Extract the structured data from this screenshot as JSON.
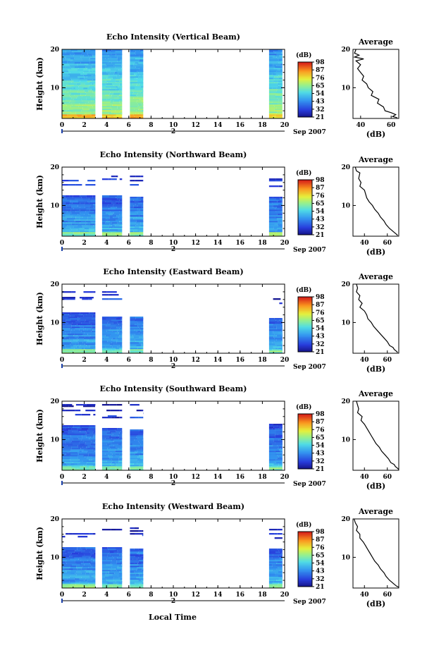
{
  "figure": {
    "xlabel": "Local Time",
    "date_label": "Sep 2007",
    "date_marker": "2"
  },
  "chart_data": [
    {
      "type": "heatmap",
      "title": "Echo Intensity (Vertical Beam)",
      "xlabel": "Local Time",
      "ylabel": "Height (km)",
      "xlim": [
        0,
        20
      ],
      "ylim": [
        2,
        20
      ],
      "xticks": [
        0,
        2,
        4,
        6,
        8,
        10,
        12,
        14,
        16,
        18,
        20
      ],
      "yticks": [
        10,
        20
      ],
      "colorbar": {
        "label": "(dB)",
        "ticks": [
          21,
          32,
          43,
          54,
          65,
          76,
          87,
          98
        ]
      },
      "data_segments": [
        [
          0,
          3
        ],
        [
          3.6,
          5.4
        ],
        [
          6.1,
          7.3
        ],
        [
          18.6,
          19.8
        ]
      ],
      "top_km": 20,
      "top_bottom_by_segment": [
        20,
        20,
        20,
        20
      ],
      "surface_dB": 87,
      "average_profile": {
        "title": "Average",
        "xlabel": "(dB)",
        "xlim": [
          35,
          65
        ],
        "xticks": [
          40,
          60
        ],
        "yticks": [
          10,
          20
        ],
        "points": [
          [
            37,
            20
          ],
          [
            36,
            19
          ],
          [
            39,
            18.5
          ],
          [
            36,
            18
          ],
          [
            42,
            17.5
          ],
          [
            37,
            17
          ],
          [
            40,
            16
          ],
          [
            38,
            15
          ],
          [
            40,
            14
          ],
          [
            42,
            13
          ],
          [
            41,
            12
          ],
          [
            44,
            11
          ],
          [
            45,
            10
          ],
          [
            48,
            9
          ],
          [
            47,
            8
          ],
          [
            52,
            7
          ],
          [
            51,
            6
          ],
          [
            55,
            5
          ],
          [
            56,
            4
          ],
          [
            60,
            3.5
          ],
          [
            63,
            3
          ],
          [
            61,
            2.5
          ],
          [
            64,
            2.2
          ]
        ]
      }
    },
    {
      "type": "heatmap",
      "title": "Echo Intensity (Northward Beam)",
      "xlabel": "Local Time",
      "ylabel": "Height (km)",
      "xlim": [
        0,
        20
      ],
      "ylim": [
        2,
        20
      ],
      "xticks": [
        0,
        2,
        4,
        6,
        8,
        10,
        12,
        14,
        16,
        18,
        20
      ],
      "yticks": [
        10,
        20
      ],
      "colorbar": {
        "label": "(dB)",
        "ticks": [
          21,
          32,
          43,
          54,
          65,
          76,
          87,
          98
        ]
      },
      "data_segments": [
        [
          0,
          3
        ],
        [
          3.6,
          5.4
        ],
        [
          6.1,
          7.3
        ],
        [
          18.6,
          19.8
        ]
      ],
      "top_km": 17.5,
      "top_bottom_by_segment": [
        12.5,
        12.5,
        12,
        12
      ],
      "surface_dB": 68,
      "average_profile": {
        "title": "Average",
        "xlabel": "(dB)",
        "xlim": [
          30,
          70
        ],
        "xticks": [
          40,
          60
        ],
        "yticks": [
          10,
          20
        ],
        "points": [
          [
            32,
            20
          ],
          [
            33,
            19
          ],
          [
            36,
            18.5
          ],
          [
            35,
            17
          ],
          [
            37,
            16
          ],
          [
            36,
            15
          ],
          [
            40,
            14
          ],
          [
            41,
            13
          ],
          [
            42,
            12
          ],
          [
            44,
            11
          ],
          [
            47,
            10
          ],
          [
            49,
            9
          ],
          [
            52,
            8
          ],
          [
            54,
            7
          ],
          [
            57,
            6
          ],
          [
            59,
            5
          ],
          [
            62,
            4
          ],
          [
            64,
            3.5
          ],
          [
            66,
            3
          ],
          [
            68,
            2.5
          ],
          [
            69,
            2.2
          ]
        ]
      }
    },
    {
      "type": "heatmap",
      "title": "Echo Intensity (Eastward Beam)",
      "xlabel": "Local Time",
      "ylabel": "Height (km)",
      "xlim": [
        0,
        20
      ],
      "ylim": [
        2,
        20
      ],
      "xticks": [
        0,
        2,
        4,
        6,
        8,
        10,
        12,
        14,
        16,
        18,
        20
      ],
      "yticks": [
        10,
        20
      ],
      "colorbar": {
        "label": "(dB)",
        "ticks": [
          21,
          32,
          43,
          54,
          65,
          76,
          87,
          98
        ]
      },
      "data_segments": [
        [
          0,
          3
        ],
        [
          3.6,
          5.4
        ],
        [
          6.1,
          7.3
        ],
        [
          18.6,
          19.8
        ]
      ],
      "top_km": 18,
      "top_bottom_by_segment": [
        12.5,
        11.5,
        11.5,
        11
      ],
      "surface_dB": 68,
      "average_profile": {
        "title": "Average",
        "xlabel": "(dB)",
        "xlim": [
          30,
          70
        ],
        "xticks": [
          40,
          60
        ],
        "yticks": [
          10,
          20
        ],
        "points": [
          [
            33,
            20
          ],
          [
            34,
            19
          ],
          [
            33,
            18
          ],
          [
            36,
            17
          ],
          [
            35,
            16
          ],
          [
            38,
            15
          ],
          [
            36,
            14
          ],
          [
            40,
            13
          ],
          [
            42,
            12
          ],
          [
            43,
            11
          ],
          [
            46,
            10
          ],
          [
            48,
            9
          ],
          [
            51,
            8
          ],
          [
            54,
            7
          ],
          [
            57,
            6
          ],
          [
            60,
            5
          ],
          [
            62,
            4
          ],
          [
            65,
            3.5
          ],
          [
            66,
            3
          ],
          [
            68,
            2.5
          ],
          [
            69,
            2.2
          ]
        ]
      }
    },
    {
      "type": "heatmap",
      "title": "Echo Intensity (Southward Beam)",
      "xlabel": "Local Time",
      "ylabel": "Height (km)",
      "xlim": [
        0,
        20
      ],
      "ylim": [
        2,
        20
      ],
      "xticks": [
        0,
        2,
        4,
        6,
        8,
        10,
        12,
        14,
        16,
        18,
        20
      ],
      "yticks": [
        10,
        20
      ],
      "colorbar": {
        "label": "(dB)",
        "ticks": [
          21,
          32,
          43,
          54,
          65,
          76,
          87,
          98
        ]
      },
      "data_segments": [
        [
          0,
          3
        ],
        [
          3.6,
          5.4
        ],
        [
          6.1,
          7.3
        ],
        [
          18.6,
          19.8
        ]
      ],
      "top_km": 19,
      "top_bottom_by_segment": [
        13.5,
        13,
        12.5,
        14
      ],
      "surface_dB": 68,
      "average_profile": {
        "title": "Average",
        "xlabel": "(dB)",
        "xlim": [
          30,
          70
        ],
        "xticks": [
          40,
          60
        ],
        "yticks": [
          10,
          20
        ],
        "points": [
          [
            33,
            20
          ],
          [
            34,
            19
          ],
          [
            35,
            18
          ],
          [
            34,
            17
          ],
          [
            38,
            16
          ],
          [
            37,
            15
          ],
          [
            40,
            14
          ],
          [
            42,
            13
          ],
          [
            44,
            12
          ],
          [
            46,
            11
          ],
          [
            48,
            10
          ],
          [
            50,
            9
          ],
          [
            53,
            8
          ],
          [
            55,
            7
          ],
          [
            58,
            6
          ],
          [
            61,
            5
          ],
          [
            63,
            4
          ],
          [
            66,
            3.5
          ],
          [
            67,
            3
          ],
          [
            69,
            2.5
          ],
          [
            70,
            2.2
          ]
        ]
      }
    },
    {
      "type": "heatmap",
      "title": "Echo Intensity (Westward Beam)",
      "xlabel": "Local Time",
      "ylabel": "Height (km)",
      "xlim": [
        0,
        20
      ],
      "ylim": [
        2,
        20
      ],
      "xticks": [
        0,
        2,
        4,
        6,
        8,
        10,
        12,
        14,
        16,
        18,
        20
      ],
      "yticks": [
        10,
        20
      ],
      "colorbar": {
        "label": "(dB)",
        "ticks": [
          21,
          32,
          43,
          54,
          65,
          76,
          87,
          98
        ]
      },
      "data_segments": [
        [
          0,
          3
        ],
        [
          3.6,
          5.4
        ],
        [
          6.1,
          7.3
        ],
        [
          18.6,
          19.8
        ]
      ],
      "top_km": 17.5,
      "top_bottom_by_segment": [
        12.5,
        12.5,
        12,
        12
      ],
      "surface_dB": 68,
      "average_profile": {
        "title": "Average",
        "xlabel": "(dB)",
        "xlim": [
          30,
          70
        ],
        "xticks": [
          40,
          60
        ],
        "yticks": [
          10,
          20
        ],
        "points": [
          [
            31,
            20
          ],
          [
            32,
            19
          ],
          [
            34,
            18
          ],
          [
            33,
            17
          ],
          [
            36,
            16
          ],
          [
            36,
            15
          ],
          [
            39,
            14
          ],
          [
            41,
            13
          ],
          [
            43,
            12
          ],
          [
            45,
            11
          ],
          [
            47,
            10
          ],
          [
            49,
            9
          ],
          [
            52,
            8
          ],
          [
            54,
            7
          ],
          [
            57,
            6
          ],
          [
            59,
            5
          ],
          [
            62,
            4
          ],
          [
            64,
            3.5
          ],
          [
            66,
            3
          ],
          [
            68,
            2.5
          ],
          [
            70,
            2.2
          ]
        ]
      }
    }
  ]
}
